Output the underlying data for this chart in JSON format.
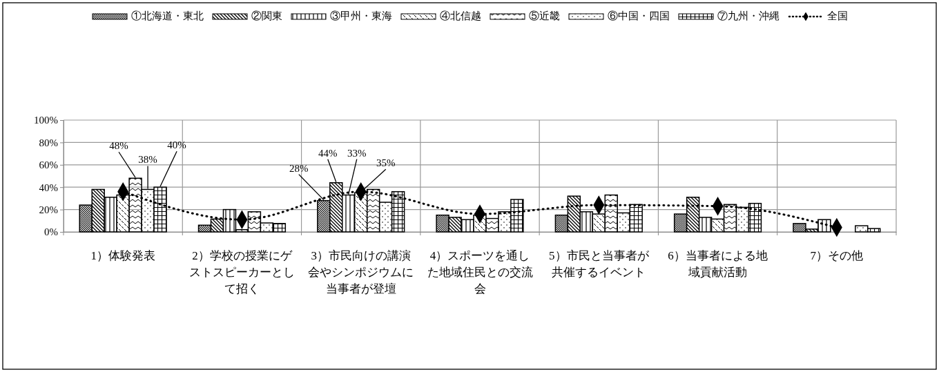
{
  "chart_data": {
    "type": "bar",
    "categories": [
      "1）体験発表",
      "2）学校の授業にゲストスピーカーとして招く",
      "3）市民向けの講演会やシンポジウムに当事者が登壇",
      "4）スポーツを通した地域住民との交流会",
      "5）市民と当事者が共催するイベント",
      "6）当事者による地域貢献活動",
      "7）その他"
    ],
    "series": [
      {
        "name": "①北海道・東北",
        "color": "#000000",
        "values": [
          24,
          6,
          28,
          15,
          15,
          16,
          7.5
        ],
        "value_labels": [
          null,
          null,
          "28%",
          null,
          null,
          null,
          null
        ]
      },
      {
        "name": "②関東",
        "color": "#000000",
        "values": [
          38,
          11.5,
          44,
          13,
          32,
          31,
          2.5
        ],
        "value_labels": [
          null,
          null,
          "44%",
          null,
          null,
          null,
          null
        ]
      },
      {
        "name": "③甲州・東海",
        "color": "#000000",
        "values": [
          31,
          20,
          33,
          11,
          18,
          13,
          11
        ],
        "value_labels": [
          null,
          null,
          "33%",
          null,
          null,
          null,
          null
        ]
      },
      {
        "name": "④北信越",
        "color": "#000000",
        "values": [
          33,
          2,
          35,
          15,
          16,
          11.5,
          null
        ],
        "value_labels": [
          null,
          null,
          "35%",
          null,
          null,
          null,
          null
        ]
      },
      {
        "name": "⑤近畿",
        "color": "#000000",
        "values": [
          48,
          18,
          38,
          12,
          33,
          24.5,
          null
        ],
        "value_labels": [
          "48%",
          null,
          null,
          null,
          null,
          null,
          null
        ]
      },
      {
        "name": "⑥中国・四国",
        "color": "#000000",
        "values": [
          38,
          8,
          26.5,
          18,
          17,
          22,
          5.5
        ],
        "value_labels": [
          "38%",
          null,
          null,
          null,
          null,
          null,
          null
        ]
      },
      {
        "name": "⑦九州・沖縄",
        "color": "#000000",
        "values": [
          40,
          7.5,
          36,
          29,
          24.5,
          25.5,
          3
        ],
        "value_labels": [
          "40%",
          null,
          null,
          null,
          null,
          null,
          null
        ]
      },
      {
        "name": "全国",
        "type": "line",
        "color": "#000000",
        "values": [
          36,
          11,
          36,
          16,
          24,
          23,
          4
        ],
        "marker": "diamond",
        "line_style": "dotted"
      }
    ],
    "ylim": [
      0,
      100
    ],
    "yticks": [
      {
        "value": 0,
        "label": "0%"
      },
      {
        "value": 20,
        "label": "20%"
      },
      {
        "value": 40,
        "label": "40%"
      },
      {
        "value": 60,
        "label": "60%"
      },
      {
        "value": 80,
        "label": "80%"
      },
      {
        "value": 100,
        "label": "100%"
      }
    ],
    "grid": true,
    "legend": "top"
  }
}
